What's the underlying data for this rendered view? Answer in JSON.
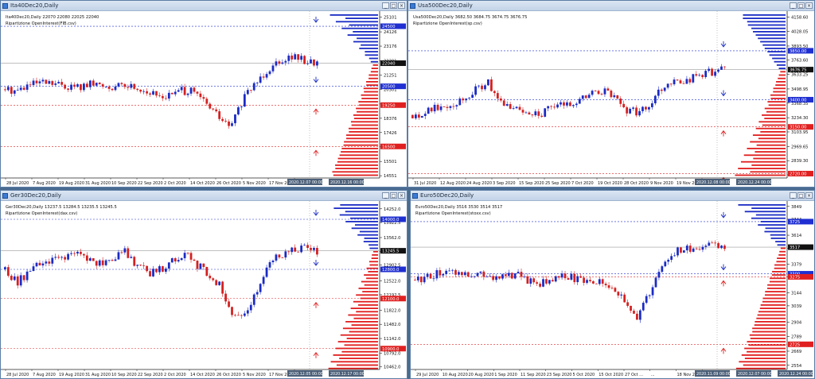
{
  "windows": [
    {
      "id": "ita40",
      "title": "Ita40Dec20,Daily",
      "info": "Ita40Dec20,Daily  22070 22080 22025 22040",
      "subtitle": "Ripartizione OpenInterest(FIB.csv)",
      "price_labels": [
        "25101",
        "24126",
        "23176",
        "22201",
        "21251",
        "20301",
        "19326",
        "18376",
        "17426",
        "16476",
        "15501",
        "14551"
      ],
      "ylim": [
        14400,
        25400
      ],
      "current_price": 22040,
      "current_label": "22040",
      "oi_levels": [
        {
          "label": "24500",
          "value": 24500,
          "color": "#1f2fd1"
        },
        {
          "label": "20500",
          "value": 20500,
          "color": "#1f2fd1"
        },
        {
          "label": "19250",
          "value": 19250,
          "color": "#e02020"
        },
        {
          "label": "16500",
          "value": 16500,
          "color": "#e02020"
        }
      ],
      "date_labels": [
        "28 Jul 2020",
        "7 Aug 2020",
        "19 Aug 2020",
        "31 Aug 2020",
        "10 Sep 2020",
        "22 Sep 2020",
        "2 Oct 2020",
        "14 Oct 2020",
        "26 Oct 2020",
        "5 Nov 2020",
        "17 Nov 2020",
        "27 ..."
      ],
      "cursor_labels": [
        "2020.12.07 00:00",
        "2020.12.16 00:00"
      ],
      "chart_data": {
        "type": "candlestick",
        "anchors": [
          20300,
          20250,
          20600,
          20700,
          20650,
          20500,
          20450,
          20650,
          20550,
          20450,
          20550,
          20300,
          19900,
          19850,
          20200,
          20150,
          19450,
          18600,
          17700,
          19500,
          20700,
          21600,
          22300,
          22500,
          22200,
          22100
        ],
        "bars": 100
      }
    },
    {
      "id": "usa500",
      "title": "Usa500Dec20,Daily",
      "info": "Usa500Dec20,Daily  3682.50 3684.75 3674.75 3676.75",
      "subtitle": "Ripartizione OpenInterest(sp.csv)",
      "price_labels": [
        "4158.60",
        "4028.05",
        "3893.50",
        "3763.60",
        "3633.25",
        "3498.95",
        "3368.35",
        "3234.30",
        "3103.95",
        "2969.65",
        "2839.30",
        "2709.00"
      ],
      "ylim": [
        2680,
        4200
      ],
      "current_price": 3676.75,
      "current_label": "3676.75",
      "oi_levels": [
        {
          "label": "3850.00",
          "value": 3850,
          "color": "#1f2fd1"
        },
        {
          "label": "3400.00",
          "value": 3400,
          "color": "#1f2fd1"
        },
        {
          "label": "3150.00",
          "value": 3150,
          "color": "#e02020"
        },
        {
          "label": "2720.00",
          "value": 2720,
          "color": "#e02020"
        }
      ],
      "date_labels": [
        "31 Jul 2020",
        "12 Aug 2020",
        "24 Aug 2020",
        "3 Sep 2020",
        "15 Sep 2020",
        "25 Sep 2020",
        "7 Oct 2020",
        "19 Oct 2020",
        "28 Oct 2020",
        "9 Nov 2020",
        "19 Nov 2020",
        "..."
      ],
      "cursor_labels": [
        "2020.12.08 00:00",
        "2020.12.24 00:00"
      ],
      "chart_data": {
        "type": "candlestick",
        "anchors": [
          3260,
          3280,
          3330,
          3350,
          3380,
          3430,
          3500,
          3560,
          3370,
          3340,
          3300,
          3290,
          3270,
          3330,
          3350,
          3380,
          3420,
          3480,
          3470,
          3400,
          3300,
          3280,
          3360,
          3500,
          3570,
          3560,
          3600,
          3640,
          3660,
          3680
        ],
        "bars": 100
      }
    },
    {
      "id": "ger30",
      "title": "Ger30Dec20,Daily",
      "info": "Ger30Dec20,Daily  13237.5 13284.5 13235.5 13245.5",
      "subtitle": "Ripartizione OpenInterest(dax.csv)",
      "price_labels": [
        "14252.0",
        "13922.5",
        "13562.0",
        "13232.0",
        "12902.5",
        "12522.0",
        "12192.5",
        "11822.0",
        "11482.0",
        "11142.0",
        "10792.0",
        "10462.0"
      ],
      "ylim": [
        10400,
        14400
      ],
      "current_price": 13245.5,
      "current_label": "13245.5",
      "oi_levels": [
        {
          "label": "14000.0",
          "value": 14000,
          "color": "#1f2fd1"
        },
        {
          "label": "12800.0",
          "value": 12800,
          "color": "#1f2fd1"
        },
        {
          "label": "12100.0",
          "value": 12100,
          "color": "#e02020"
        },
        {
          "label": "10900.0",
          "value": 10900,
          "color": "#e02020"
        }
      ],
      "date_labels": [
        "28 Jul 2020",
        "7 Aug 2020",
        "19 Aug 2020",
        "31 Aug 2020",
        "10 Sep 2020",
        "22 Sep 2020",
        "2 Oct 2020",
        "14 Oct 2020",
        "26 Oct 2020",
        "5 Nov 2020",
        "17 Nov 2020",
        "..."
      ],
      "cursor_labels": [
        "2020.12.05 00:00",
        "2020.12.17 00:00"
      ],
      "chart_data": {
        "type": "candlestick",
        "anchors": [
          12800,
          12500,
          12700,
          12950,
          13000,
          13100,
          13150,
          13050,
          12950,
          13100,
          13250,
          12900,
          12700,
          12800,
          13050,
          13200,
          12900,
          12700,
          12400,
          11600,
          11800,
          12300,
          13000,
          13150,
          13250,
          13300,
          13250
        ],
        "bars": 100
      }
    },
    {
      "id": "euro50",
      "title": "Euro50Dec20,Daily",
      "info": "Euro50Dec20,Daily  3516 3530 3514 3517",
      "subtitle": "Ripartizione OpenInterest(stoxx.csv)",
      "price_labels": [
        "3849",
        "3744",
        "3614",
        "3509",
        "3379",
        "3274",
        "3144",
        "3039",
        "2904",
        "2789",
        "2669",
        "2554"
      ],
      "ylim": [
        2520,
        3880
      ],
      "current_price": 3517,
      "current_label": "3517",
      "oi_levels": [
        {
          "label": "3725",
          "value": 3725,
          "color": "#1f2fd1"
        },
        {
          "label": "3300",
          "value": 3300,
          "color": "#1f2fd1"
        },
        {
          "label": "3275",
          "value": 3275,
          "color": "#e02020"
        },
        {
          "label": "2725",
          "value": 2725,
          "color": "#e02020"
        }
      ],
      "date_labels": [
        "29 Jul 2020",
        "10 Aug 2020",
        "20 Aug 2020",
        "1 Sep 2020",
        "11 Sep 2020",
        "23 Sep 2020",
        "5 Oct 2020",
        "15 Oct 2020",
        "27 Oct ...",
        "...",
        "18 Nov 2020",
        "..."
      ],
      "cursor_labels": [
        "2020.11.09 00:00",
        "2020.12.07 00:00",
        "2020.12.24 00:00"
      ],
      "chart_data": {
        "type": "candlestick",
        "anchors": [
          3250,
          3280,
          3300,
          3320,
          3310,
          3300,
          3280,
          3260,
          3300,
          3250,
          3220,
          3250,
          3280,
          3260,
          3230,
          3250,
          3190,
          3050,
          2950,
          3150,
          3400,
          3480,
          3500,
          3510,
          3530,
          3520
        ],
        "bars": 100
      }
    }
  ]
}
